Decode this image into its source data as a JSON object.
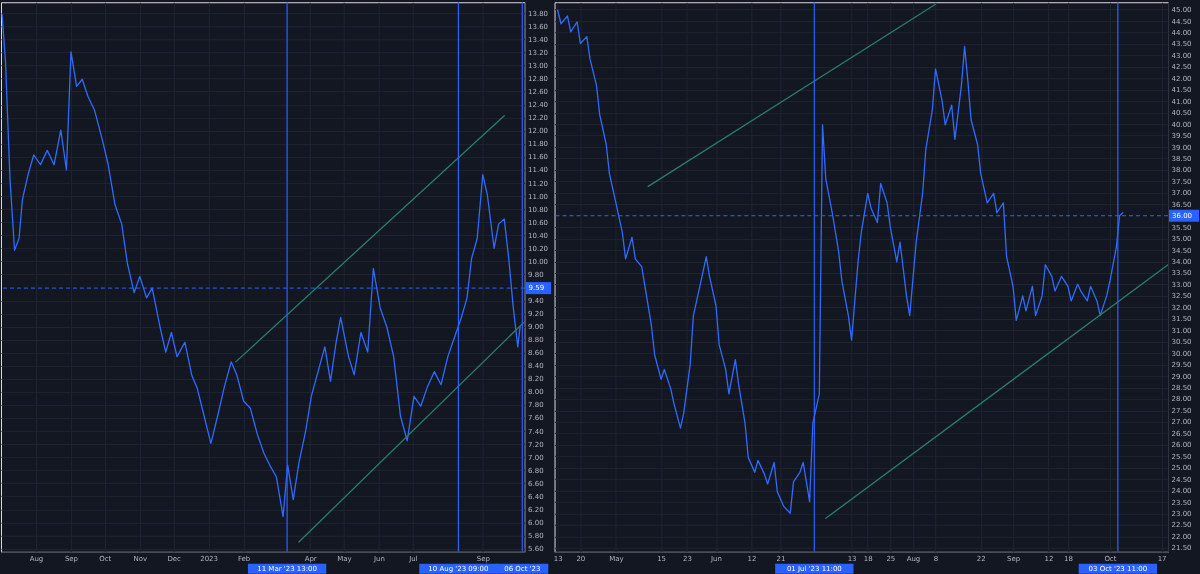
{
  "chart_data": [
    {
      "type": "line",
      "xlim": [
        "2022-07-01",
        "2023-10-08"
      ],
      "ylim": [
        5.55,
        13.97
      ],
      "xticks": [
        {
          "value": "2022-08-01",
          "label": "Aug"
        },
        {
          "value": "2022-09-01",
          "label": "Sep"
        },
        {
          "value": "2022-10-01",
          "label": "Oct"
        },
        {
          "value": "2022-11-01",
          "label": "Nov"
        },
        {
          "value": "2022-12-01",
          "label": "Dec"
        },
        {
          "value": "2023-01-01",
          "label": "2023"
        },
        {
          "value": "2023-02-01",
          "label": "Feb"
        },
        {
          "value": "2023-04-01",
          "label": "Apr"
        },
        {
          "value": "2023-05-01",
          "label": "May"
        },
        {
          "value": "2023-06-01",
          "label": "Jun"
        },
        {
          "value": "2023-07-01",
          "label": "Jul"
        },
        {
          "value": "2023-09-01",
          "label": "Sep"
        }
      ],
      "yticks": [
        {
          "value": 5.6,
          "label": "5.60"
        },
        {
          "value": 5.8,
          "label": "5.80"
        },
        {
          "value": 6.0,
          "label": "6.00"
        },
        {
          "value": 6.2,
          "label": "6.20"
        },
        {
          "value": 6.4,
          "label": "6.40"
        },
        {
          "value": 6.6,
          "label": "6.60"
        },
        {
          "value": 6.8,
          "label": "6.80"
        },
        {
          "value": 7.0,
          "label": "7.00"
        },
        {
          "value": 7.2,
          "label": "7.20"
        },
        {
          "value": 7.4,
          "label": "7.40"
        },
        {
          "value": 7.6,
          "label": "7.60"
        },
        {
          "value": 7.8,
          "label": "7.80"
        },
        {
          "value": 8.0,
          "label": "8.00"
        },
        {
          "value": 8.2,
          "label": "8.20"
        },
        {
          "value": 8.4,
          "label": "8.40"
        },
        {
          "value": 8.6,
          "label": "8.60"
        },
        {
          "value": 8.8,
          "label": "8.80"
        },
        {
          "value": 9.0,
          "label": "9.00"
        },
        {
          "value": 9.2,
          "label": "9.20"
        },
        {
          "value": 9.4,
          "label": "9.40"
        },
        {
          "value": 9.8,
          "label": "9.80"
        },
        {
          "value": 10.0,
          "label": "10.00"
        },
        {
          "value": 10.2,
          "label": "10.20"
        },
        {
          "value": 10.4,
          "label": "10.40"
        },
        {
          "value": 10.6,
          "label": "10.60"
        },
        {
          "value": 10.8,
          "label": "10.80"
        },
        {
          "value": 11.0,
          "label": "11.00"
        },
        {
          "value": 11.2,
          "label": "11.20"
        },
        {
          "value": 11.4,
          "label": "11.40"
        },
        {
          "value": 11.6,
          "label": "11.60"
        },
        {
          "value": 11.8,
          "label": "11.80"
        },
        {
          "value": 12.0,
          "label": "12.00"
        },
        {
          "value": 12.2,
          "label": "12.20"
        },
        {
          "value": 12.4,
          "label": "12.40"
        },
        {
          "value": 12.6,
          "label": "12.60"
        },
        {
          "value": 12.8,
          "label": "12.80"
        },
        {
          "value": 13.0,
          "label": "13.00"
        },
        {
          "value": 13.2,
          "label": "13.20"
        },
        {
          "value": 13.4,
          "label": "13.40"
        },
        {
          "value": 13.6,
          "label": "13.60"
        },
        {
          "value": 13.8,
          "label": "13.80"
        }
      ],
      "grid": true,
      "x": [
        "2022-07-02",
        "2022-07-05",
        "2022-07-09",
        "2022-07-13",
        "2022-07-17",
        "2022-07-20",
        "2022-07-25",
        "2022-07-30",
        "2022-08-05",
        "2022-08-11",
        "2022-08-17",
        "2022-08-23",
        "2022-08-28",
        "2022-09-01",
        "2022-09-06",
        "2022-09-11",
        "2022-09-16",
        "2022-09-22",
        "2022-09-29",
        "2022-10-04",
        "2022-10-10",
        "2022-10-16",
        "2022-10-21",
        "2022-10-27",
        "2022-11-01",
        "2022-11-07",
        "2022-11-12",
        "2022-11-19",
        "2022-11-24",
        "2022-11-29",
        "2022-12-04",
        "2022-12-11",
        "2022-12-17",
        "2022-12-22",
        "2022-12-28",
        "2023-01-03",
        "2023-01-09",
        "2023-01-15",
        "2023-01-21",
        "2023-01-26",
        "2023-02-01",
        "2023-02-07",
        "2023-02-13",
        "2023-02-19",
        "2023-02-25",
        "2023-03-02",
        "2023-03-08",
        "2023-03-12",
        "2023-03-17",
        "2023-03-22",
        "2023-03-28",
        "2023-04-02",
        "2023-04-08",
        "2023-04-14",
        "2023-04-19",
        "2023-04-24",
        "2023-04-28",
        "2023-05-05",
        "2023-05-10",
        "2023-05-16",
        "2023-05-22",
        "2023-05-27",
        "2023-06-02",
        "2023-06-08",
        "2023-06-14",
        "2023-06-20",
        "2023-06-26",
        "2023-07-02",
        "2023-07-08",
        "2023-07-14",
        "2023-07-20",
        "2023-07-26",
        "2023-08-01",
        "2023-08-07",
        "2023-08-13",
        "2023-08-18",
        "2023-08-22",
        "2023-08-27",
        "2023-09-01",
        "2023-09-05",
        "2023-09-11",
        "2023-09-15",
        "2023-09-20",
        "2023-09-24",
        "2023-09-28",
        "2023-10-02",
        "2023-10-04"
      ],
      "series": [
        {
          "color": "#2f6bff",
          "values": [
            13.78,
            13.06,
            11.25,
            10.17,
            10.35,
            10.95,
            11.33,
            11.63,
            11.48,
            11.7,
            11.48,
            12.01,
            11.4,
            13.21,
            12.68,
            12.79,
            12.53,
            12.31,
            11.85,
            11.48,
            10.87,
            10.57,
            9.97,
            9.52,
            9.77,
            9.44,
            9.59,
            8.99,
            8.61,
            8.91,
            8.54,
            8.76,
            8.26,
            8.05,
            7.63,
            7.21,
            7.63,
            8.08,
            8.46,
            8.26,
            7.86,
            7.75,
            7.36,
            7.06,
            6.85,
            6.7,
            6.09,
            6.88,
            6.35,
            6.91,
            7.4,
            7.93,
            8.31,
            8.69,
            8.16,
            8.76,
            9.14,
            8.54,
            8.26,
            8.91,
            8.61,
            9.89,
            9.29,
            8.99,
            8.54,
            7.63,
            7.25,
            7.93,
            7.78,
            8.08,
            8.31,
            8.11,
            8.54,
            8.84,
            9.14,
            9.44,
            10.04,
            10.35,
            11.33,
            11.02,
            10.2,
            10.57,
            10.65,
            10.04,
            9.29,
            8.69,
            8.99
          ]
        },
        {
          "type": "line",
          "color": "#2a7d6a",
          "x": [
            "2023-01-25",
            "2023-09-20"
          ],
          "values": [
            8.46,
            12.23
          ]
        },
        {
          "type": "line",
          "color": "#2a7d6a",
          "x": [
            "2023-03-22",
            "2023-10-07"
          ],
          "values": [
            5.7,
            9.06
          ]
        }
      ],
      "ref_lines": [
        {
          "axis": "x",
          "value": "2023-03-11T13:00",
          "label": "11 Mar '23 13:00",
          "color": "#2962ff"
        },
        {
          "axis": "x",
          "value": "2023-08-10T09:00",
          "label": "10 Aug '23 09:00",
          "color": "#2962ff"
        },
        {
          "axis": "x",
          "value": "2023-10-06",
          "label": "06 Oct '23",
          "color": "#2962ff"
        },
        {
          "axis": "y",
          "value": 9.59,
          "label": "9.59",
          "color": "#2962ff",
          "line_style": "dashed"
        }
      ]
    },
    {
      "type": "line",
      "xlim": [
        "2023-04-12",
        "2023-10-19"
      ],
      "ylim": [
        21.33,
        45.32
      ],
      "xticks": [
        {
          "value": "2023-04-13",
          "label": "13"
        },
        {
          "value": "2023-04-20",
          "label": "20"
        },
        {
          "value": "2023-05-01",
          "label": "May"
        },
        {
          "value": "2023-05-15",
          "label": "15"
        },
        {
          "value": "2023-05-23",
          "label": "23"
        },
        {
          "value": "2023-06-01",
          "label": "Jun"
        },
        {
          "value": "2023-06-12",
          "label": "12"
        },
        {
          "value": "2023-06-21",
          "label": "21"
        },
        {
          "value": "2023-07-13",
          "label": "13"
        },
        {
          "value": "2023-07-18",
          "label": "18"
        },
        {
          "value": "2023-07-25",
          "label": "25"
        },
        {
          "value": "2023-08-01",
          "label": "Aug"
        },
        {
          "value": "2023-08-08",
          "label": "8"
        },
        {
          "value": "2023-08-22",
          "label": "22"
        },
        {
          "value": "2023-09-01",
          "label": "Sep"
        },
        {
          "value": "2023-09-12",
          "label": "12"
        },
        {
          "value": "2023-09-18",
          "label": "18"
        },
        {
          "value": "2023-10-01",
          "label": "Oct"
        },
        {
          "value": "2023-10-17",
          "label": "17"
        }
      ],
      "yticks": [
        {
          "value": 21.5,
          "label": "21.50"
        },
        {
          "value": 22.0,
          "label": "22.00"
        },
        {
          "value": 22.5,
          "label": "22.50"
        },
        {
          "value": 23.0,
          "label": "23.00"
        },
        {
          "value": 23.5,
          "label": "23.50"
        },
        {
          "value": 24.0,
          "label": "24.00"
        },
        {
          "value": 24.5,
          "label": "24.50"
        },
        {
          "value": 25.0,
          "label": "25.00"
        },
        {
          "value": 25.5,
          "label": "25.50"
        },
        {
          "value": 26.0,
          "label": "26.00"
        },
        {
          "value": 26.5,
          "label": "26.50"
        },
        {
          "value": 27.0,
          "label": "27.00"
        },
        {
          "value": 27.5,
          "label": "27.50"
        },
        {
          "value": 28.0,
          "label": "28.00"
        },
        {
          "value": 28.5,
          "label": "28.50"
        },
        {
          "value": 29.0,
          "label": "29.00"
        },
        {
          "value": 29.5,
          "label": "29.50"
        },
        {
          "value": 30.0,
          "label": "30.00"
        },
        {
          "value": 30.5,
          "label": "30.50"
        },
        {
          "value": 31.0,
          "label": "31.00"
        },
        {
          "value": 31.5,
          "label": "31.50"
        },
        {
          "value": 32.0,
          "label": "32.00"
        },
        {
          "value": 32.5,
          "label": "32.50"
        },
        {
          "value": 33.0,
          "label": "33.00"
        },
        {
          "value": 33.5,
          "label": "33.50"
        },
        {
          "value": 34.0,
          "label": "34.00"
        },
        {
          "value": 34.5,
          "label": "34.50"
        },
        {
          "value": 35.0,
          "label": "35.00"
        },
        {
          "value": 35.5,
          "label": "35.50"
        },
        {
          "value": 36.5,
          "label": "36.50"
        },
        {
          "value": 37.0,
          "label": "37.00"
        },
        {
          "value": 37.5,
          "label": "37.50"
        },
        {
          "value": 38.0,
          "label": "38.00"
        },
        {
          "value": 38.5,
          "label": "38.50"
        },
        {
          "value": 39.0,
          "label": "39.00"
        },
        {
          "value": 39.5,
          "label": "39.50"
        },
        {
          "value": 40.0,
          "label": "40.00"
        },
        {
          "value": 40.5,
          "label": "40.50"
        },
        {
          "value": 41.0,
          "label": "41.00"
        },
        {
          "value": 41.5,
          "label": "41.50"
        },
        {
          "value": 42.0,
          "label": "42.00"
        },
        {
          "value": 42.5,
          "label": "42.50"
        },
        {
          "value": 43.0,
          "label": "43.00"
        },
        {
          "value": 43.5,
          "label": "43.50"
        },
        {
          "value": 44.0,
          "label": "44.00"
        },
        {
          "value": 44.5,
          "label": "44.50"
        },
        {
          "value": 45.0,
          "label": "45.00"
        }
      ],
      "grid": true,
      "x": [
        "2023-04-13",
        "2023-04-14",
        "2023-04-16",
        "2023-04-17",
        "2023-04-19",
        "2023-04-20",
        "2023-04-22",
        "2023-04-23",
        "2023-04-25",
        "2023-04-26",
        "2023-04-28",
        "2023-04-29",
        "2023-05-01",
        "2023-05-03",
        "2023-05-04",
        "2023-05-06",
        "2023-05-07",
        "2023-05-09",
        "2023-05-10",
        "2023-05-12",
        "2023-05-13",
        "2023-05-15",
        "2023-05-16",
        "2023-05-18",
        "2023-05-19",
        "2023-05-21",
        "2023-05-22",
        "2023-05-24",
        "2023-05-25",
        "2023-05-27",
        "2023-05-29",
        "2023-05-30",
        "2023-06-01",
        "2023-06-02",
        "2023-06-04",
        "2023-06-05",
        "2023-06-07",
        "2023-06-08",
        "2023-06-10",
        "2023-06-11",
        "2023-06-13",
        "2023-06-14",
        "2023-06-16",
        "2023-06-17",
        "2023-06-19",
        "2023-06-20",
        "2023-06-22",
        "2023-06-24",
        "2023-06-25",
        "2023-06-27",
        "2023-06-28",
        "2023-06-30",
        "2023-07-01",
        "2023-07-03",
        "2023-07-04",
        "2023-07-05",
        "2023-07-07",
        "2023-07-09",
        "2023-07-10",
        "2023-07-12",
        "2023-07-13",
        "2023-07-15",
        "2023-07-16",
        "2023-07-18",
        "2023-07-19",
        "2023-07-21",
        "2023-07-22",
        "2023-07-24",
        "2023-07-25",
        "2023-07-27",
        "2023-07-28",
        "2023-07-30",
        "2023-07-31",
        "2023-08-02",
        "2023-08-04",
        "2023-08-05",
        "2023-08-07",
        "2023-08-08",
        "2023-08-10",
        "2023-08-11",
        "2023-08-13",
        "2023-08-14",
        "2023-08-16",
        "2023-08-17",
        "2023-08-18",
        "2023-08-19",
        "2023-08-21",
        "2023-08-22",
        "2023-08-24",
        "2023-08-26",
        "2023-08-27",
        "2023-08-29",
        "2023-08-30",
        "2023-09-01",
        "2023-09-02",
        "2023-09-04",
        "2023-09-05",
        "2023-09-07",
        "2023-09-08",
        "2023-09-10",
        "2023-09-11",
        "2023-09-13",
        "2023-09-14",
        "2023-09-16",
        "2023-09-18",
        "2023-09-19",
        "2023-09-21",
        "2023-09-22",
        "2023-09-24",
        "2023-09-25",
        "2023-09-27",
        "2023-09-28",
        "2023-09-30",
        "2023-10-01",
        "2023-10-03",
        "2023-10-04",
        "2023-10-05"
      ],
      "series": [
        {
          "color": "#2f6bff",
          "values": [
            44.97,
            44.38,
            44.72,
            44.03,
            44.46,
            43.52,
            43.82,
            42.84,
            41.68,
            40.4,
            39.12,
            37.84,
            36.56,
            35.27,
            34.12,
            35.06,
            34.12,
            33.78,
            32.92,
            31.21,
            29.93,
            28.86,
            29.29,
            28.44,
            27.79,
            26.73,
            27.37,
            29.5,
            31.64,
            32.92,
            34.21,
            33.35,
            32.07,
            30.36,
            29.29,
            28.22,
            29.72,
            28.65,
            26.94,
            25.44,
            24.8,
            25.32,
            24.72,
            24.29,
            25.23,
            23.95,
            23.31,
            23.01,
            24.38,
            24.8,
            25.23,
            23.52,
            26.94,
            28.22,
            39.97,
            37.62,
            36.13,
            34.42,
            33.14,
            31.64,
            30.57,
            33.99,
            35.27,
            36.98,
            36.34,
            35.7,
            37.41,
            36.56,
            35.49,
            33.99,
            34.85,
            32.5,
            31.64,
            34.85,
            36.98,
            38.91,
            40.62,
            42.41,
            41.04,
            39.97,
            40.83,
            39.33,
            41.68,
            43.39,
            41.9,
            40.19,
            39.12,
            37.84,
            36.56,
            36.98,
            36.13,
            36.56,
            34.21,
            32.92,
            31.43,
            32.5,
            31.85,
            32.92,
            31.64,
            32.5,
            33.86,
            33.35,
            32.71,
            33.35,
            32.92,
            32.28,
            33.01,
            32.71,
            32.28,
            32.92,
            32.28,
            31.64,
            32.5,
            33.14,
            34.63,
            36.0,
            36.13
          ]
        },
        {
          "type": "line",
          "color": "#2a7d6a",
          "x": [
            "2023-05-11",
            "2023-08-08"
          ],
          "values": [
            37.28,
            45.23
          ]
        },
        {
          "type": "line",
          "color": "#2a7d6a",
          "x": [
            "2023-07-05",
            "2023-10-19"
          ],
          "values": [
            22.79,
            33.86
          ]
        }
      ],
      "ref_lines": [
        {
          "axis": "x",
          "value": "2023-07-01T11:00",
          "label": "01 Jul '23 11:00",
          "color": "#2962ff"
        },
        {
          "axis": "x",
          "value": "2023-10-03T11:00",
          "label": "03 Oct '23 11:00",
          "color": "#2962ff"
        },
        {
          "axis": "y",
          "value": 36.0,
          "label": "36.00",
          "color": "#2962ff",
          "line_style": "dashed"
        }
      ]
    }
  ]
}
